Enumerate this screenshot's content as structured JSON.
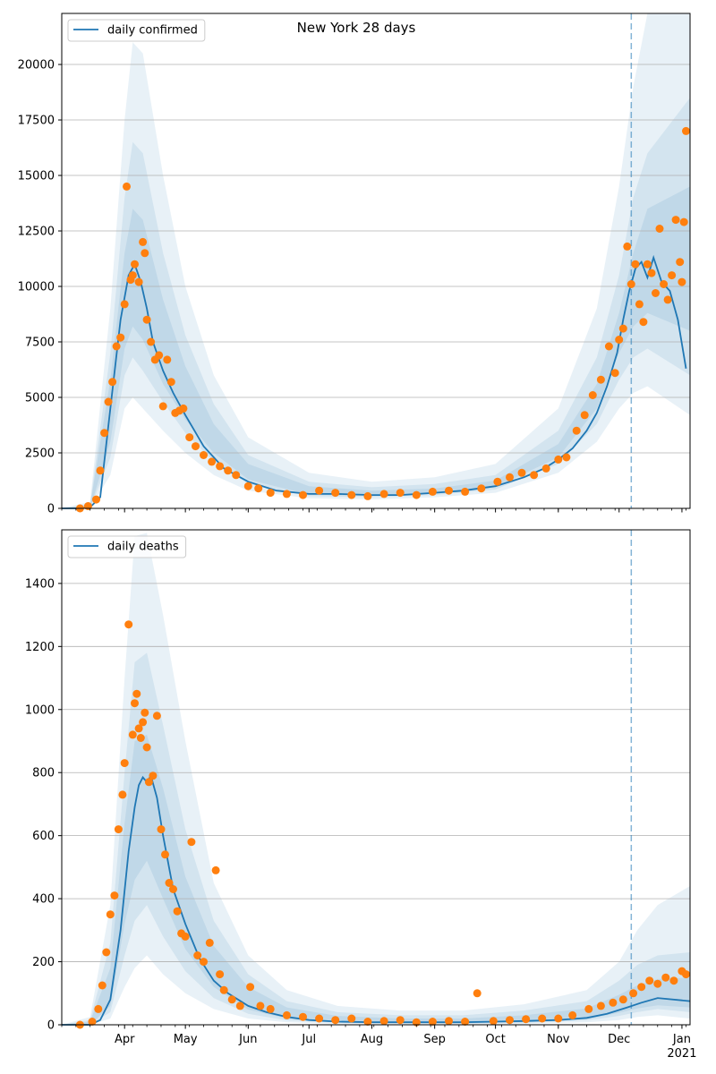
{
  "colors": {
    "line": "#1f77b4",
    "points": "#ff7f0e",
    "band": "#1f77b4",
    "grid": "#b0b0b0",
    "vline": "#1f77b4"
  },
  "chart_data": [
    {
      "type": "line",
      "title": "New York 28 days",
      "legend": [
        "daily confirmed"
      ],
      "legend_location": "upper left",
      "xlabel": "",
      "ylabel": "",
      "xlim": [
        "2020-03-01",
        "2021-01-05"
      ],
      "ylim": [
        0,
        22300
      ],
      "yticks": [
        0,
        2500,
        5000,
        7500,
        10000,
        12500,
        15000,
        17500,
        20000
      ],
      "grid": "y",
      "forecast_start": "2020-12-07",
      "line": {
        "name": "daily confirmed",
        "x": [
          "2020-03-01",
          "2020-03-10",
          "2020-03-15",
          "2020-03-20",
          "2020-03-25",
          "2020-03-30",
          "2020-04-03",
          "2020-04-06",
          "2020-04-09",
          "2020-04-12",
          "2020-04-15",
          "2020-04-20",
          "2020-04-25",
          "2020-05-01",
          "2020-05-10",
          "2020-05-20",
          "2020-06-01",
          "2020-06-15",
          "2020-07-01",
          "2020-07-15",
          "2020-08-01",
          "2020-08-15",
          "2020-09-01",
          "2020-09-15",
          "2020-10-01",
          "2020-10-15",
          "2020-10-25",
          "2020-11-01",
          "2020-11-08",
          "2020-11-15",
          "2020-11-20",
          "2020-11-25",
          "2020-11-30",
          "2020-12-03",
          "2020-12-06",
          "2020-12-09",
          "2020-12-12",
          "2020-12-15",
          "2020-12-18",
          "2020-12-22",
          "2020-12-26",
          "2020-12-30",
          "2021-01-03"
        ],
        "y": [
          0,
          0,
          50,
          500,
          4500,
          8500,
          10500,
          11000,
          10200,
          9000,
          7500,
          6200,
          5200,
          4200,
          2800,
          1800,
          1200,
          800,
          650,
          650,
          600,
          600,
          700,
          800,
          1000,
          1400,
          1800,
          2200,
          2700,
          3500,
          4300,
          5500,
          7000,
          8500,
          9800,
          10800,
          11100,
          10400,
          11300,
          10200,
          9800,
          8500,
          6300
        ]
      },
      "bands": [
        {
          "x": [
            "2020-03-01",
            "2020-03-15",
            "2020-03-25",
            "2020-04-01",
            "2020-04-05",
            "2020-04-10",
            "2020-04-20",
            "2020-05-01",
            "2020-05-15",
            "2020-06-01",
            "2020-07-01",
            "2020-08-01",
            "2020-09-01",
            "2020-10-01",
            "2020-11-01",
            "2020-11-20",
            "2020-12-01",
            "2020-12-08",
            "2020-12-15",
            "2021-01-05"
          ],
          "lo": [
            0,
            0,
            1500,
            4500,
            5000,
            4500,
            3500,
            2500,
            1500,
            800,
            450,
            400,
            500,
            700,
            1600,
            3000,
            4500,
            5200,
            5500,
            4200
          ],
          "hi": [
            0,
            300,
            9000,
            17500,
            21000,
            20500,
            15000,
            10000,
            6000,
            3200,
            1600,
            1200,
            1400,
            2000,
            4500,
            9000,
            14500,
            19000,
            22300,
            22300
          ]
        },
        {
          "x": [
            "2020-03-01",
            "2020-03-15",
            "2020-03-25",
            "2020-04-01",
            "2020-04-05",
            "2020-04-10",
            "2020-04-20",
            "2020-05-01",
            "2020-05-15",
            "2020-06-01",
            "2020-07-01",
            "2020-08-01",
            "2020-09-01",
            "2020-10-01",
            "2020-11-01",
            "2020-11-20",
            "2020-12-01",
            "2020-12-08",
            "2020-12-15",
            "2021-01-05"
          ],
          "lo": [
            0,
            0,
            2300,
            6000,
            6800,
            6200,
            4800,
            3400,
            2100,
            1100,
            550,
            500,
            600,
            850,
            2000,
            3800,
            5800,
            6800,
            7200,
            6000
          ],
          "hi": [
            0,
            200,
            7000,
            14000,
            16500,
            16000,
            11500,
            7800,
            4700,
            2400,
            1200,
            950,
            1100,
            1500,
            3500,
            6800,
            10500,
            14000,
            16000,
            18500
          ]
        },
        {
          "x": [
            "2020-03-01",
            "2020-03-15",
            "2020-03-25",
            "2020-04-01",
            "2020-04-05",
            "2020-04-10",
            "2020-04-20",
            "2020-05-01",
            "2020-05-15",
            "2020-06-01",
            "2020-07-01",
            "2020-08-01",
            "2020-09-01",
            "2020-10-01",
            "2020-11-01",
            "2020-11-20",
            "2020-12-01",
            "2020-12-08",
            "2020-12-15",
            "2021-01-05"
          ],
          "lo": [
            0,
            0,
            3000,
            7200,
            8200,
            7600,
            5600,
            4000,
            2500,
            1300,
            620,
            560,
            680,
            950,
            2300,
            4500,
            7000,
            8200,
            8800,
            8000
          ],
          "hi": [
            0,
            120,
            5800,
            11500,
            13500,
            13000,
            9400,
            6400,
            3800,
            2000,
            1000,
            800,
            900,
            1250,
            2900,
            5600,
            8800,
            11500,
            13500,
            14500
          ]
        }
      ],
      "points": {
        "x": [
          "2020-03-10",
          "2020-03-14",
          "2020-03-18",
          "2020-03-20",
          "2020-03-22",
          "2020-03-24",
          "2020-03-26",
          "2020-03-28",
          "2020-03-30",
          "2020-04-01",
          "2020-04-02",
          "2020-04-04",
          "2020-04-05",
          "2020-04-06",
          "2020-04-08",
          "2020-04-10",
          "2020-04-11",
          "2020-04-12",
          "2020-04-14",
          "2020-04-16",
          "2020-04-18",
          "2020-04-20",
          "2020-04-22",
          "2020-04-24",
          "2020-04-26",
          "2020-04-28",
          "2020-04-30",
          "2020-05-03",
          "2020-05-06",
          "2020-05-10",
          "2020-05-14",
          "2020-05-18",
          "2020-05-22",
          "2020-05-26",
          "2020-06-01",
          "2020-06-06",
          "2020-06-12",
          "2020-06-20",
          "2020-06-28",
          "2020-07-06",
          "2020-07-14",
          "2020-07-22",
          "2020-07-30",
          "2020-08-07",
          "2020-08-15",
          "2020-08-23",
          "2020-08-31",
          "2020-09-08",
          "2020-09-16",
          "2020-09-24",
          "2020-10-02",
          "2020-10-08",
          "2020-10-14",
          "2020-10-20",
          "2020-10-26",
          "2020-11-01",
          "2020-11-05",
          "2020-11-10",
          "2020-11-14",
          "2020-11-18",
          "2020-11-22",
          "2020-11-26",
          "2020-11-29",
          "2020-12-01",
          "2020-12-03",
          "2020-12-05",
          "2020-12-07",
          "2020-12-09",
          "2020-12-11",
          "2020-12-13",
          "2020-12-15",
          "2020-12-17",
          "2020-12-19",
          "2020-12-21",
          "2020-12-23",
          "2020-12-25",
          "2020-12-27",
          "2020-12-29",
          "2020-12-31",
          "2021-01-01",
          "2021-01-02",
          "2021-01-03"
        ],
        "y": [
          0,
          100,
          400,
          1700,
          3400,
          4800,
          5700,
          7300,
          7700,
          9200,
          14500,
          10300,
          10500,
          11000,
          10200,
          12000,
          11500,
          8500,
          7500,
          6700,
          6900,
          4600,
          6700,
          5700,
          4300,
          4400,
          4500,
          3200,
          2800,
          2400,
          2100,
          1900,
          1700,
          1500,
          1000,
          900,
          700,
          650,
          600,
          800,
          700,
          600,
          550,
          650,
          700,
          600,
          750,
          800,
          750,
          900,
          1200,
          1400,
          1600,
          1500,
          1800,
          2200,
          2300,
          3500,
          4200,
          5100,
          5800,
          7300,
          6100,
          7600,
          8100,
          11800,
          10100,
          11000,
          9200,
          8400,
          11000,
          10600,
          9700,
          12600,
          10100,
          9400,
          10500,
          13000,
          11100,
          10200,
          12900,
          17000
        ]
      }
    },
    {
      "type": "line",
      "title": "",
      "legend": [
        "daily deaths"
      ],
      "legend_location": "upper left",
      "xlabel": "",
      "ylabel": "",
      "xlim": [
        "2020-03-01",
        "2021-01-05"
      ],
      "ylim": [
        0,
        1570
      ],
      "yticks": [
        0,
        200,
        400,
        600,
        800,
        1000,
        1200,
        1400
      ],
      "xticks": [
        "Apr",
        "May",
        "Jun",
        "Jul",
        "Aug",
        "Sep",
        "Oct",
        "Nov",
        "Dec",
        "Jan"
      ],
      "xtick_year": "2021",
      "grid": "y",
      "forecast_start": "2020-12-07",
      "line": {
        "name": "daily deaths",
        "x": [
          "2020-03-01",
          "2020-03-15",
          "2020-03-20",
          "2020-03-25",
          "2020-03-30",
          "2020-04-03",
          "2020-04-06",
          "2020-04-08",
          "2020-04-10",
          "2020-04-12",
          "2020-04-14",
          "2020-04-17",
          "2020-04-20",
          "2020-04-25",
          "2020-05-01",
          "2020-05-08",
          "2020-05-15",
          "2020-05-22",
          "2020-06-01",
          "2020-06-10",
          "2020-06-20",
          "2020-07-01",
          "2020-07-15",
          "2020-08-01",
          "2020-08-15",
          "2020-09-01",
          "2020-09-15",
          "2020-10-01",
          "2020-10-15",
          "2020-11-01",
          "2020-11-15",
          "2020-11-25",
          "2020-12-05",
          "2020-12-12",
          "2020-12-20",
          "2021-01-05"
        ],
        "y": [
          0,
          0,
          15,
          80,
          300,
          550,
          690,
          760,
          785,
          770,
          790,
          720,
          600,
          430,
          320,
          210,
          140,
          100,
          60,
          40,
          25,
          15,
          10,
          8,
          8,
          8,
          8,
          10,
          12,
          15,
          22,
          35,
          55,
          70,
          85,
          75
        ]
      },
      "bands": [
        {
          "x": [
            "2020-03-01",
            "2020-03-15",
            "2020-03-25",
            "2020-04-01",
            "2020-04-06",
            "2020-04-12",
            "2020-04-20",
            "2020-05-01",
            "2020-05-15",
            "2020-06-01",
            "2020-06-20",
            "2020-07-15",
            "2020-08-15",
            "2020-09-15",
            "2020-10-15",
            "2020-11-15",
            "2020-12-01",
            "2020-12-10",
            "2020-12-20",
            "2021-01-05"
          ],
          "lo": [
            0,
            0,
            20,
            120,
            180,
            220,
            160,
            100,
            50,
            20,
            8,
            3,
            2,
            2,
            3,
            8,
            15,
            25,
            30,
            20
          ],
          "hi": [
            0,
            25,
            380,
            1100,
            1550,
            1560,
            1300,
            900,
            450,
            220,
            110,
            60,
            45,
            45,
            65,
            110,
            200,
            300,
            380,
            440
          ]
        },
        {
          "x": [
            "2020-03-01",
            "2020-03-15",
            "2020-03-25",
            "2020-04-01",
            "2020-04-06",
            "2020-04-12",
            "2020-04-20",
            "2020-05-01",
            "2020-05-15",
            "2020-06-01",
            "2020-06-20",
            "2020-07-15",
            "2020-08-15",
            "2020-09-15",
            "2020-10-15",
            "2020-11-15",
            "2020-12-01",
            "2020-12-10",
            "2020-12-20",
            "2021-01-05"
          ],
          "lo": [
            0,
            0,
            40,
            220,
            330,
            380,
            280,
            170,
            85,
            35,
            14,
            6,
            4,
            4,
            6,
            14,
            28,
            40,
            50,
            40
          ],
          "hi": [
            0,
            15,
            260,
            800,
            1150,
            1180,
            950,
            620,
            330,
            160,
            75,
            40,
            30,
            30,
            45,
            75,
            140,
            190,
            220,
            230
          ]
        },
        {
          "x": [
            "2020-03-01",
            "2020-03-15",
            "2020-03-25",
            "2020-04-01",
            "2020-04-06",
            "2020-04-12",
            "2020-04-20",
            "2020-05-01",
            "2020-05-15",
            "2020-06-01",
            "2020-06-20",
            "2020-07-15",
            "2020-08-15",
            "2020-09-15",
            "2020-10-15",
            "2020-11-15",
            "2020-12-01",
            "2020-12-10",
            "2020-12-20",
            "2021-01-05"
          ],
          "lo": [
            0,
            0,
            60,
            320,
            460,
            520,
            400,
            240,
            120,
            48,
            20,
            9,
            6,
            6,
            8,
            18,
            38,
            52,
            62,
            55
          ],
          "hi": [
            0,
            10,
            180,
            640,
            900,
            920,
            750,
            470,
            250,
            120,
            55,
            28,
            20,
            20,
            30,
            52,
            95,
            125,
            145,
            150
          ]
        }
      ],
      "points": {
        "x": [
          "2020-03-10",
          "2020-03-16",
          "2020-03-19",
          "2020-03-21",
          "2020-03-23",
          "2020-03-25",
          "2020-03-27",
          "2020-03-29",
          "2020-03-31",
          "2020-04-01",
          "2020-04-03",
          "2020-04-05",
          "2020-04-06",
          "2020-04-07",
          "2020-04-08",
          "2020-04-09",
          "2020-04-10",
          "2020-04-11",
          "2020-04-12",
          "2020-04-13",
          "2020-04-15",
          "2020-04-17",
          "2020-04-19",
          "2020-04-21",
          "2020-04-23",
          "2020-04-25",
          "2020-04-27",
          "2020-04-29",
          "2020-05-01",
          "2020-05-04",
          "2020-05-07",
          "2020-05-10",
          "2020-05-13",
          "2020-05-16",
          "2020-05-18",
          "2020-05-20",
          "2020-05-24",
          "2020-05-28",
          "2020-06-02",
          "2020-06-07",
          "2020-06-12",
          "2020-06-20",
          "2020-06-28",
          "2020-07-06",
          "2020-07-14",
          "2020-07-22",
          "2020-07-30",
          "2020-08-07",
          "2020-08-15",
          "2020-08-23",
          "2020-08-31",
          "2020-09-08",
          "2020-09-16",
          "2020-09-22",
          "2020-09-30",
          "2020-10-08",
          "2020-10-16",
          "2020-10-24",
          "2020-11-01",
          "2020-11-08",
          "2020-11-16",
          "2020-11-22",
          "2020-11-28",
          "2020-12-03",
          "2020-12-08",
          "2020-12-12",
          "2020-12-16",
          "2020-12-20",
          "2020-12-24",
          "2020-12-28",
          "2021-01-01",
          "2021-01-03"
        ],
        "y": [
          0,
          10,
          50,
          125,
          230,
          350,
          410,
          620,
          730,
          830,
          1270,
          920,
          1020,
          1050,
          940,
          910,
          960,
          990,
          880,
          770,
          790,
          980,
          620,
          540,
          450,
          430,
          360,
          290,
          280,
          580,
          220,
          200,
          260,
          490,
          160,
          110,
          80,
          60,
          120,
          60,
          50,
          30,
          25,
          20,
          15,
          20,
          10,
          12,
          15,
          8,
          10,
          12,
          10,
          100,
          12,
          15,
          18,
          20,
          20,
          30,
          50,
          60,
          70,
          80,
          100,
          120,
          140,
          130,
          150,
          140,
          170,
          160
        ]
      }
    }
  ]
}
